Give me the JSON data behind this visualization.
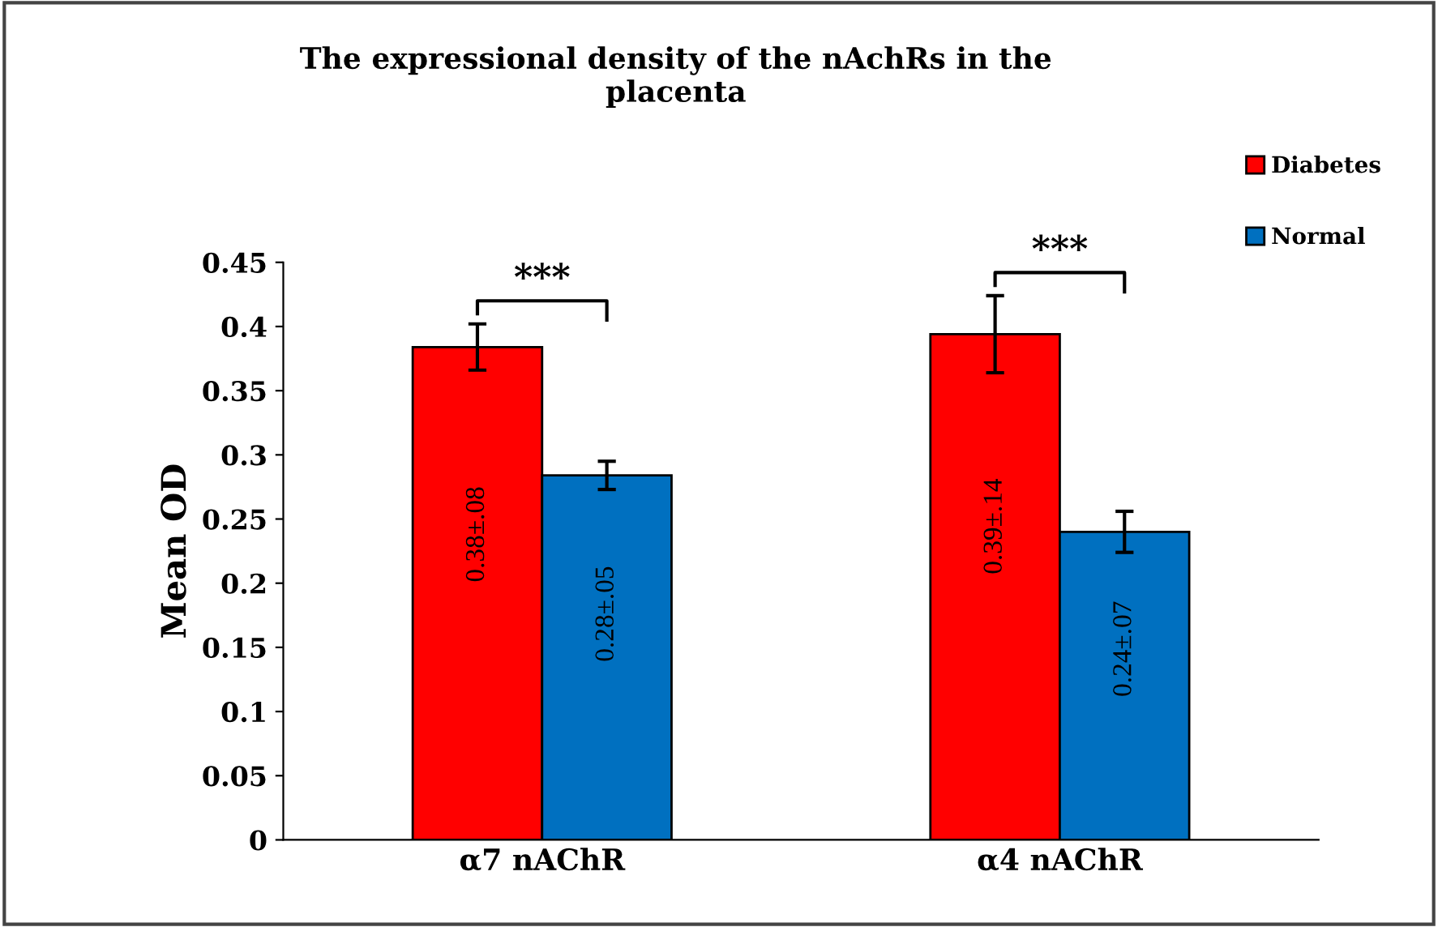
{
  "chart_data": {
    "type": "bar",
    "title": "The expressional density of the nAchRs in the\nplacenta",
    "ylabel": "Mean OD",
    "categories": [
      "α7 nAChR",
      "α4 nAChR"
    ],
    "series": [
      {
        "name": "Diabetes",
        "color": "#ff0000",
        "values": [
          0.384,
          0.394
        ],
        "errors": [
          0.018,
          0.03
        ],
        "value_labels": [
          "0.38±.08",
          "0.39±.14"
        ]
      },
      {
        "name": "Normal",
        "color": "#0070c0",
        "values": [
          0.284,
          0.24
        ],
        "errors": [
          0.011,
          0.016
        ],
        "value_labels": [
          "0.28±.05",
          "0.24±.07"
        ]
      }
    ],
    "ylim": [
      0,
      0.45
    ],
    "yticks": [
      0,
      0.05,
      0.1,
      0.15,
      0.2,
      0.25,
      0.3,
      0.35,
      0.4,
      0.45
    ],
    "grid": false,
    "legend": "top right",
    "annotations": [
      "***",
      "***"
    ]
  }
}
